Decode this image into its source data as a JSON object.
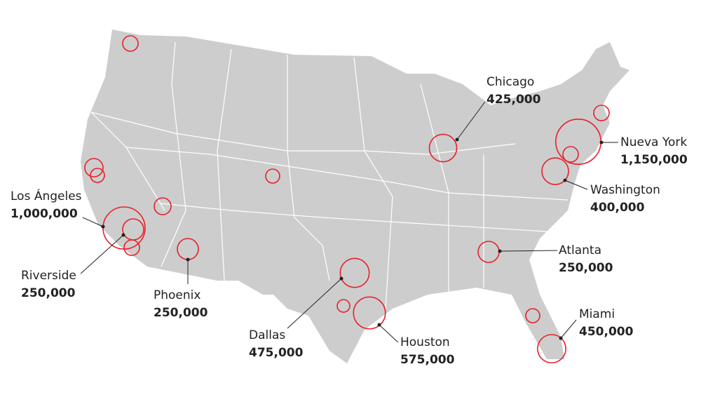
{
  "cities": [
    {
      "name": "Chicago",
      "value": 425000,
      "value_label": "425,000"
    },
    {
      "name": "Nueva York",
      "value": 1150000,
      "value_label": "1,150,000"
    },
    {
      "name": "Washington",
      "value": 400000,
      "value_label": "400,000"
    },
    {
      "name": "Atlanta",
      "value": 250000,
      "value_label": "250,000"
    },
    {
      "name": "Miami",
      "value": 450000,
      "value_label": "450,000"
    },
    {
      "name": "Houston",
      "value": 575000,
      "value_label": "575,000"
    },
    {
      "name": "Dallas",
      "value": 475000,
      "value_label": "475,000"
    },
    {
      "name": "Phoenix",
      "value": 250000,
      "value_label": "250,000"
    },
    {
      "name": "Los Ángeles",
      "value": 1000000,
      "value_label": "1,000,000"
    },
    {
      "name": "Riverside",
      "value": 250000,
      "value_label": "250,000"
    }
  ]
}
